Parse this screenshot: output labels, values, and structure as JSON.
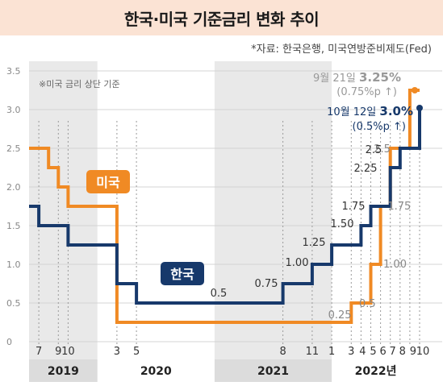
{
  "title": "한국·미국 기준금리 변화 추이",
  "source": "*자료: 한국은행, 미국연방준비제도(Fed)",
  "chart_data": {
    "type": "line",
    "step": true,
    "note": "※미국 금리 상단 기준",
    "ylim": [
      0,
      3.5
    ],
    "y_ticks": [
      "0",
      "0.5",
      "1.0",
      "1.5",
      "2.0",
      "2.5",
      "3.0",
      "3.5"
    ],
    "x_range": [
      "2019-06",
      "2022-10"
    ],
    "x_ticks": [
      {
        "date": "2019-07",
        "label": "7"
      },
      {
        "date": "2019-09",
        "label": "9"
      },
      {
        "date": "2019-10",
        "label": "10"
      },
      {
        "date": "2020-03",
        "label": "3"
      },
      {
        "date": "2020-05",
        "label": "5"
      },
      {
        "date": "2021-08",
        "label": "8"
      },
      {
        "date": "2021-11",
        "label": "11"
      },
      {
        "date": "2022-01",
        "label": "1"
      },
      {
        "date": "2022-03",
        "label": "3"
      },
      {
        "date": "2022-04",
        "label": "4"
      },
      {
        "date": "2022-05",
        "label": "5"
      },
      {
        "date": "2022-06",
        "label": "6"
      },
      {
        "date": "2022-07",
        "label": "7"
      },
      {
        "date": "2022-08",
        "label": "8"
      },
      {
        "date": "2022-09",
        "label": "9"
      },
      {
        "date": "2022-10",
        "label": "10"
      }
    ],
    "years": [
      {
        "label": "2019",
        "from": "2019-06",
        "to": "2020-01",
        "shaded": true
      },
      {
        "label": "2020",
        "from": "2020-01",
        "to": "2021-01",
        "shaded": false
      },
      {
        "label": "2021",
        "from": "2021-01",
        "to": "2022-01",
        "shaded": true
      },
      {
        "label": "2022년",
        "from": "2022-01",
        "to": "2022-10",
        "shaded": false
      }
    ],
    "series": [
      {
        "name": "미국",
        "color": "#f08a24",
        "points": [
          [
            "2019-06",
            2.5
          ],
          [
            "2019-08",
            2.25
          ],
          [
            "2019-09",
            2.0
          ],
          [
            "2019-10",
            1.75
          ],
          [
            "2020-03",
            0.25
          ],
          [
            "2022-03",
            0.5
          ],
          [
            "2022-05",
            1.0
          ],
          [
            "2022-06",
            1.75
          ],
          [
            "2022-07",
            2.5
          ],
          [
            "2022-09",
            3.25
          ],
          [
            "2022-10",
            3.25
          ]
        ],
        "step_labels": [
          "0.25",
          "0.5",
          "1.00",
          "1.75",
          "2.5"
        ]
      },
      {
        "name": "한국",
        "color": "#17396b",
        "points": [
          [
            "2019-06",
            1.75
          ],
          [
            "2019-07",
            1.5
          ],
          [
            "2019-10",
            1.25
          ],
          [
            "2020-03",
            0.75
          ],
          [
            "2020-05",
            0.5
          ],
          [
            "2021-08",
            0.75
          ],
          [
            "2021-11",
            1.0
          ],
          [
            "2022-01",
            1.25
          ],
          [
            "2022-04",
            1.5
          ],
          [
            "2022-05",
            1.75
          ],
          [
            "2022-07",
            2.25
          ],
          [
            "2022-08",
            2.5
          ],
          [
            "2022-10",
            3.0
          ]
        ],
        "step_labels": [
          "0.5",
          "0.75",
          "1.00",
          "1.25",
          "1.50",
          "1.75",
          "2.25",
          "2.5"
        ]
      }
    ],
    "annotations": {
      "us": {
        "date": "9월 21일",
        "value": "3.25%",
        "change": "(0.75%p ↑)"
      },
      "kr": {
        "date": "10월 12일",
        "value": "3.0%",
        "change": "(0.5%p ↑)"
      }
    }
  }
}
